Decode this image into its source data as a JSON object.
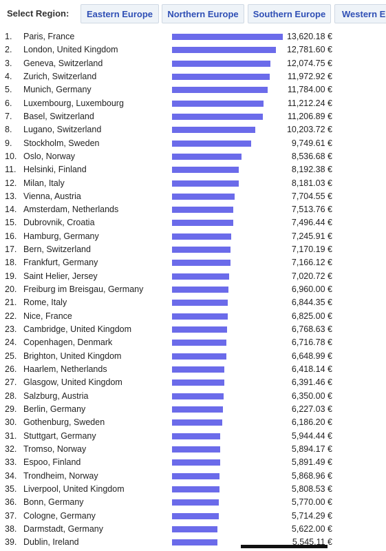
{
  "header": {
    "label": "Select Region:",
    "tabs": [
      "Eastern Europe",
      "Northern Europe",
      "Southern Europe",
      "Western Europe"
    ]
  },
  "list": {
    "ranks": [
      "1.",
      "2.",
      "3.",
      "4.",
      "5.",
      "6.",
      "7.",
      "8.",
      "9.",
      "10.",
      "11.",
      "12.",
      "13.",
      "14.",
      "15.",
      "16.",
      "17.",
      "18.",
      "19.",
      "20.",
      "21.",
      "22.",
      "23.",
      "24.",
      "25.",
      "26.",
      "27.",
      "28.",
      "29.",
      "30.",
      "31.",
      "32.",
      "33.",
      "34.",
      "35.",
      "36.",
      "37.",
      "38.",
      "39."
    ],
    "cities": [
      "Paris, France",
      "London, United Kingdom",
      "Geneva, Switzerland",
      "Zurich, Switzerland",
      "Munich, Germany",
      "Luxembourg, Luxembourg",
      "Basel, Switzerland",
      "Lugano, Switzerland",
      "Stockholm, Sweden",
      "Oslo, Norway",
      "Helsinki, Finland",
      "Milan, Italy",
      "Vienna, Austria",
      "Amsterdam, Netherlands",
      "Dubrovnik, Croatia",
      "Hamburg, Germany",
      "Bern, Switzerland",
      "Frankfurt, Germany",
      "Saint Helier, Jersey",
      "Freiburg im Breisgau, Germany",
      "Rome, Italy",
      "Nice, France",
      "Cambridge, United Kingdom",
      "Copenhagen, Denmark",
      "Brighton, United Kingdom",
      "Haarlem, Netherlands",
      "Glasgow, United Kingdom",
      "Salzburg, Austria",
      "Berlin, Germany",
      "Gothenburg, Sweden",
      "Stuttgart, Germany",
      "Tromso, Norway",
      "Espoo, Finland",
      "Trondheim, Norway",
      "Liverpool, United Kingdom",
      "Bonn, Germany",
      "Cologne, Germany",
      "Darmstadt, Germany",
      "Dublin, Ireland"
    ],
    "values": [
      13620.18,
      12781.6,
      12074.75,
      11972.92,
      11784.0,
      11212.24,
      11206.89,
      10203.72,
      9749.61,
      8536.68,
      8192.38,
      8181.03,
      7704.55,
      7513.76,
      7496.44,
      7245.91,
      7170.19,
      7166.12,
      7020.72,
      6960.0,
      6844.35,
      6825.0,
      6768.63,
      6716.78,
      6648.99,
      6418.14,
      6391.46,
      6350.0,
      6227.03,
      6186.2,
      5944.44,
      5894.17,
      5891.49,
      5868.96,
      5808.53,
      5770.0,
      5714.29,
      5622.0,
      5545.11
    ],
    "value_labels": [
      "13,620.18 €",
      "12,781.60 €",
      "12,074.75 €",
      "11,972.92 €",
      "11,784.00 €",
      "11,212.24 €",
      "11,206.89 €",
      "10,203.72 €",
      "9,749.61 €",
      "8,536.68 €",
      "8,192.38 €",
      "8,181.03 €",
      "7,704.55 €",
      "7,513.76 €",
      "7,496.44 €",
      "7,245.91 €",
      "7,170.19 €",
      "7,166.12 €",
      "7,020.72 €",
      "6,960.00 €",
      "6,844.35 €",
      "6,825.00 €",
      "6,768.63 €",
      "6,716.78 €",
      "6,648.99 €",
      "6,418.14 €",
      "6,391.46 €",
      "6,350.00 €",
      "6,227.03 €",
      "6,186.20 €",
      "5,944.44 €",
      "5,894.17 €",
      "5,891.49 €",
      "5,868.96 €",
      "5,808.53 €",
      "5,770.00 €",
      "5,714.29 €",
      "5,622.00 €",
      "5,545.11 €"
    ],
    "bar_color": "#6b6bea"
  }
}
